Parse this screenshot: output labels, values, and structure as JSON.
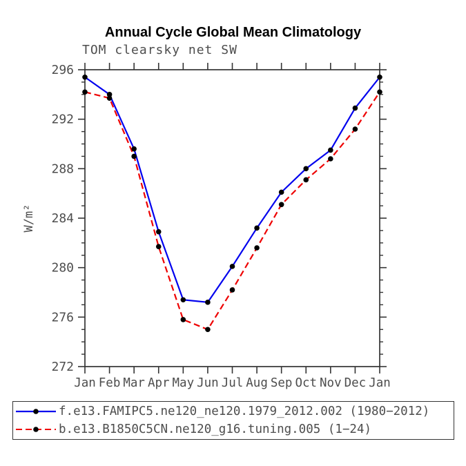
{
  "header": {
    "title": "Annual Cycle Global Mean Climatology",
    "subtitle": "TOM clearsky net SW"
  },
  "chart_data": {
    "type": "line",
    "title": "Annual Cycle Global Mean Climatology",
    "subtitle": "TOM clearsky net SW",
    "xlabel": "",
    "ylabel": "W/m²",
    "categories": [
      "Jan",
      "Feb",
      "Mar",
      "Apr",
      "May",
      "Jun",
      "Jul",
      "Aug",
      "Sep",
      "Oct",
      "Nov",
      "Dec",
      "Jan"
    ],
    "ylim": [
      272,
      296
    ],
    "y_major_ticks": [
      272,
      276,
      280,
      284,
      288,
      292,
      296
    ],
    "y_minor_step": 1,
    "grid": false,
    "legend_position": "bottom",
    "marker": {
      "shape": "circle",
      "color": "#000000",
      "radius": 3.8
    },
    "axis_color": "#333333",
    "label_color": "#4d4d4d",
    "series": [
      {
        "name": "f.e13.FAMIPC5.ne120_ne120.1979_2012.002 (1980−2012)",
        "color": "#0000ee",
        "line_style": "solid",
        "values": [
          295.4,
          294.0,
          289.6,
          282.9,
          277.4,
          277.2,
          280.1,
          283.2,
          286.1,
          288.0,
          289.5,
          292.9,
          295.4
        ]
      },
      {
        "name": "b.e13.B1850C5CN.ne120_g16.tuning.005 (1−24)",
        "color": "#ee0000",
        "line_style": "dashed",
        "values": [
          294.2,
          293.7,
          289.0,
          281.7,
          275.8,
          275.0,
          278.2,
          281.6,
          285.1,
          287.1,
          288.8,
          291.2,
          294.2
        ]
      }
    ]
  },
  "legend": {
    "entries": [
      {
        "label": "f.e13.FAMIPC5.ne120_ne120.1979_2012.002 (1980−2012)"
      },
      {
        "label": "b.e13.B1850C5CN.ne120_g16.tuning.005 (1−24)"
      }
    ]
  }
}
